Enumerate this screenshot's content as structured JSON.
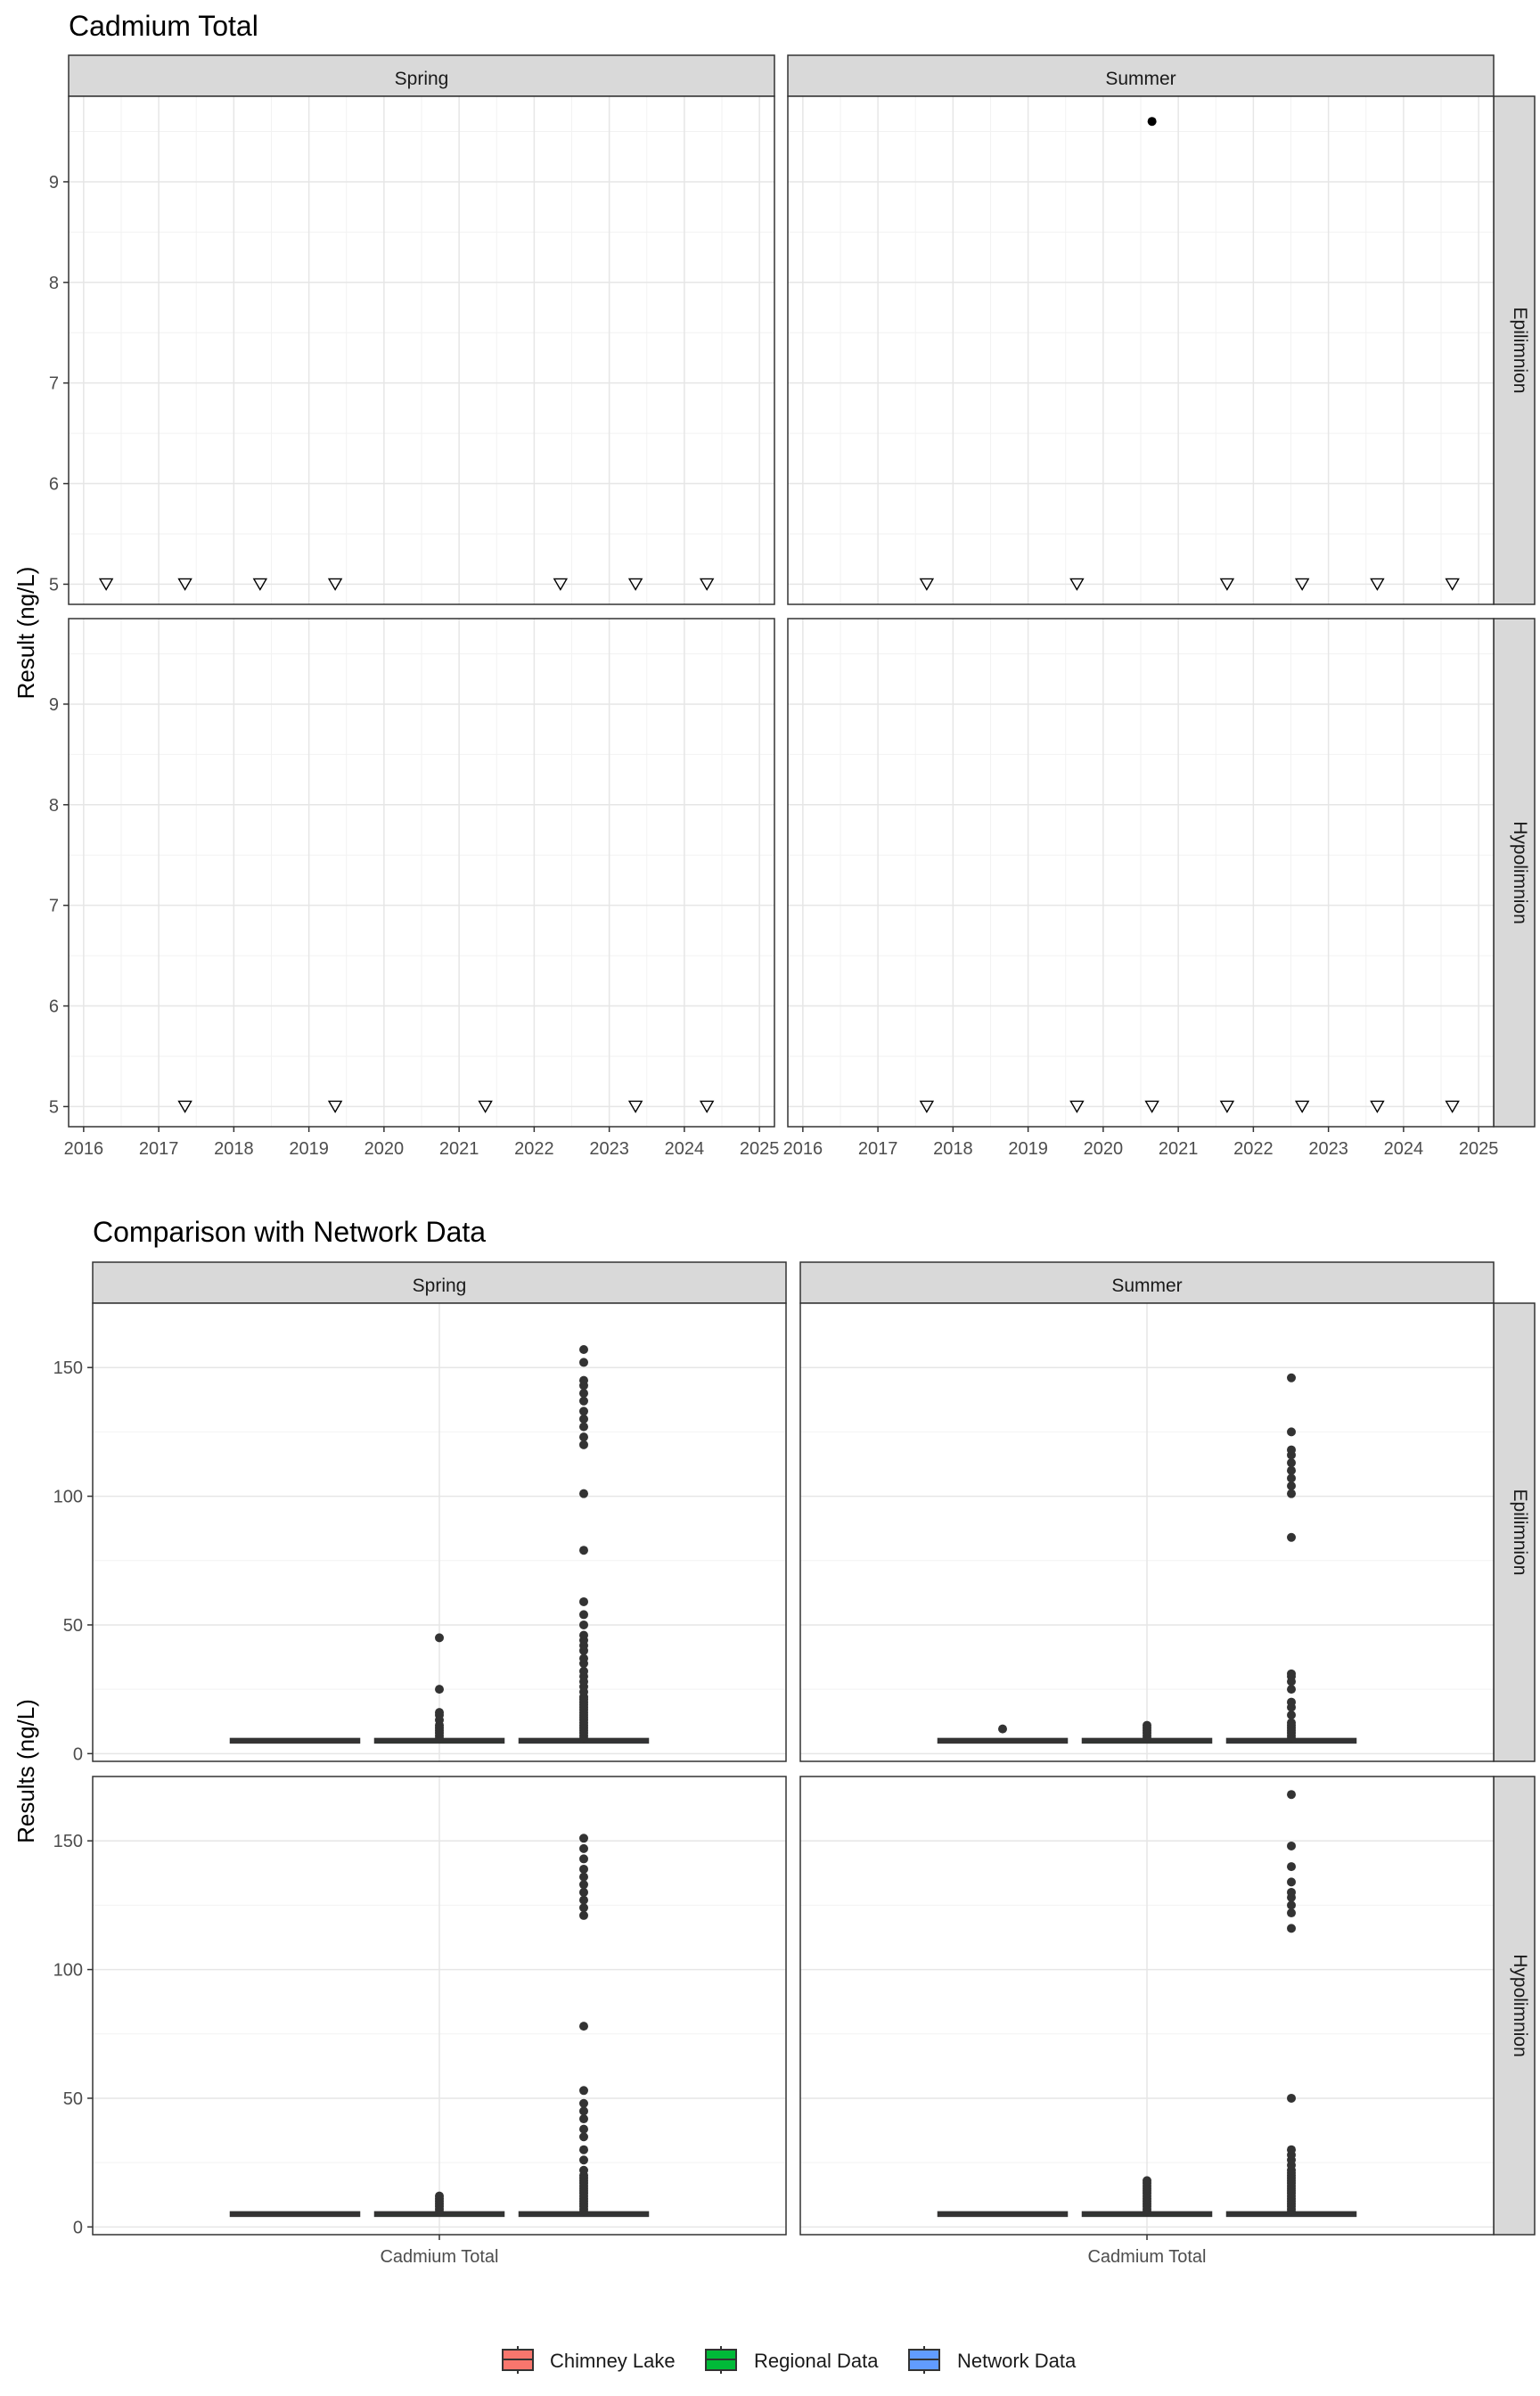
{
  "chart_data": [
    {
      "type": "scatter",
      "title": "Cadmium Total",
      "ylabel": "Result (ng/L)",
      "xlabel": "",
      "ylim": [
        4.8,
        9.85
      ],
      "xlim": [
        2015.8,
        2025.2
      ],
      "x_ticks": [
        "2016",
        "2017",
        "2018",
        "2019",
        "2020",
        "2021",
        "2022",
        "2023",
        "2024",
        "2025"
      ],
      "y_ticks": [
        "5",
        "6",
        "7",
        "8",
        "9"
      ],
      "col_labels": [
        "Spring",
        "Summer"
      ],
      "row_labels": [
        "Epilimnion",
        "Hypolimnion"
      ],
      "grid": true,
      "marker_note": "open triangle = below detection limit; filled circle = detected value",
      "panels": [
        {
          "col": "Spring",
          "row": "Epilimnion",
          "below_detection": [
            [
              2016.3,
              5
            ],
            [
              2017.35,
              5
            ],
            [
              2018.35,
              5
            ],
            [
              2019.35,
              5
            ],
            [
              2022.35,
              5
            ],
            [
              2023.35,
              5
            ],
            [
              2024.3,
              5
            ]
          ],
          "detected": []
        },
        {
          "col": "Summer",
          "row": "Epilimnion",
          "below_detection": [
            [
              2017.65,
              5
            ],
            [
              2019.65,
              5
            ],
            [
              2021.65,
              5
            ],
            [
              2022.65,
              5
            ],
            [
              2023.65,
              5
            ],
            [
              2024.65,
              5
            ]
          ],
          "detected": [
            [
              2020.65,
              9.6
            ]
          ]
        },
        {
          "col": "Spring",
          "row": "Hypolimnion",
          "below_detection": [
            [
              2017.35,
              5
            ],
            [
              2019.35,
              5
            ],
            [
              2021.35,
              5
            ],
            [
              2023.35,
              5
            ],
            [
              2024.3,
              5
            ]
          ],
          "detected": []
        },
        {
          "col": "Summer",
          "row": "Hypolimnion",
          "below_detection": [
            [
              2017.65,
              5
            ],
            [
              2019.65,
              5
            ],
            [
              2020.65,
              5
            ],
            [
              2021.65,
              5
            ],
            [
              2022.65,
              5
            ],
            [
              2023.65,
              5
            ],
            [
              2024.65,
              5
            ]
          ],
          "detected": []
        }
      ]
    },
    {
      "type": "box",
      "title": "Comparison with Network Data",
      "ylabel": "Results (ng/L)",
      "xlabel": "",
      "ylim": [
        -3,
        175
      ],
      "y_ticks": [
        0,
        50,
        100,
        150
      ],
      "category": "Cadmium Total",
      "col_labels": [
        "Spring",
        "Summer"
      ],
      "row_labels": [
        "Epilimnion",
        "Hypolimnion"
      ],
      "grid": true,
      "legend": {
        "position": "bottom",
        "entries": [
          {
            "name": "Chimney Lake",
            "color": "#F8766D"
          },
          {
            "name": "Regional Data",
            "color": "#00BA38"
          },
          {
            "name": "Network Data",
            "color": "#619CFF"
          }
        ]
      },
      "panels": [
        {
          "col": "Spring",
          "row": "Epilimnion",
          "boxes": [
            {
              "name": "Chimney Lake",
              "median": 5,
              "outliers": []
            },
            {
              "name": "Regional Data",
              "median": 5,
              "outliers": [
                6,
                7,
                8,
                9,
                10,
                11,
                13,
                15,
                16,
                25,
                45
              ]
            },
            {
              "name": "Network Data",
              "median": 5,
              "outliers": [
                6,
                7,
                8,
                9,
                10,
                11,
                12,
                13,
                14,
                15,
                16,
                17,
                18,
                19,
                20,
                21,
                22,
                24,
                26,
                28,
                30,
                32,
                35,
                37,
                40,
                42,
                44,
                46,
                50,
                54,
                59,
                79,
                101,
                120,
                123,
                127,
                130,
                133,
                137,
                140,
                143,
                145,
                152,
                157
              ]
            }
          ]
        },
        {
          "col": "Summer",
          "row": "Epilimnion",
          "boxes": [
            {
              "name": "Chimney Lake",
              "median": 5,
              "outliers": [
                9.6
              ]
            },
            {
              "name": "Regional Data",
              "median": 5,
              "outliers": [
                6,
                7,
                8,
                9,
                10,
                11
              ]
            },
            {
              "name": "Network Data",
              "median": 5,
              "outliers": [
                6,
                7,
                8,
                9,
                10,
                11,
                12,
                15,
                18,
                20,
                25,
                28,
                30,
                31,
                84,
                101,
                104,
                107,
                110,
                113,
                116,
                118,
                125,
                146
              ]
            }
          ]
        },
        {
          "col": "Spring",
          "row": "Hypolimnion",
          "boxes": [
            {
              "name": "Chimney Lake",
              "median": 5,
              "outliers": []
            },
            {
              "name": "Regional Data",
              "median": 5,
              "outliers": [
                6,
                7,
                8,
                9,
                10,
                11,
                12
              ]
            },
            {
              "name": "Network Data",
              "median": 5,
              "outliers": [
                6,
                7,
                8,
                9,
                10,
                11,
                12,
                13,
                14,
                15,
                16,
                17,
                18,
                19,
                20,
                22,
                26,
                30,
                35,
                38,
                42,
                45,
                48,
                53,
                78,
                121,
                124,
                127,
                130,
                133,
                136,
                139,
                143,
                147,
                151
              ]
            }
          ]
        },
        {
          "col": "Summer",
          "row": "Hypolimnion",
          "boxes": [
            {
              "name": "Chimney Lake",
              "median": 5,
              "outliers": []
            },
            {
              "name": "Regional Data",
              "median": 5,
              "outliers": [
                6,
                7,
                8,
                9,
                10,
                11,
                12,
                13,
                14,
                15,
                16,
                17,
                18
              ]
            },
            {
              "name": "Network Data",
              "median": 5,
              "outliers": [
                6,
                7,
                8,
                9,
                10,
                11,
                12,
                13,
                14,
                15,
                16,
                17,
                18,
                19,
                20,
                21,
                22,
                24,
                26,
                28,
                30,
                50,
                116,
                122,
                125,
                128,
                130,
                134,
                140,
                148,
                168
              ]
            }
          ]
        }
      ]
    }
  ]
}
